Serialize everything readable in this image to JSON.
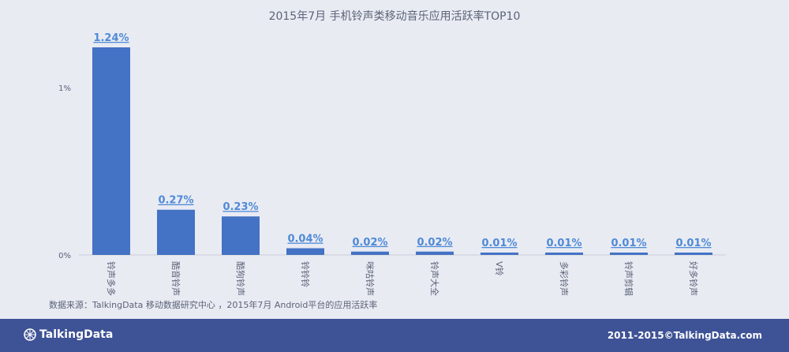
{
  "chart_data": {
    "type": "bar",
    "title": "2015年7月 手机铃声类移动音乐应用活跃率TOP10",
    "categories": [
      "铃声多多",
      "酷音铃声",
      "酷狗铃声",
      "铃铃铃",
      "咪咕铃声",
      "铃声大全",
      "V铃",
      "多彩铃声",
      "铃声剪辑",
      "好多铃声"
    ],
    "values": [
      1.24,
      0.27,
      0.23,
      0.04,
      0.02,
      0.02,
      0.01,
      0.01,
      0.01,
      0.01
    ],
    "value_labels": [
      "1.24%",
      "0.27%",
      "0.23%",
      "0.04%",
      "0.02%",
      "0.02%",
      "0.01%",
      "0.01%",
      "0.01%",
      "0.01%"
    ],
    "y_ticks": [
      0,
      1
    ],
    "y_tick_labels": [
      "0%",
      "1%"
    ],
    "ylim": [
      0,
      1.24
    ],
    "xlabel": "",
    "ylabel": "",
    "grid": false,
    "colors": {
      "bar": "#4472c4",
      "label": "#4f8ad6",
      "axis_text": "#5b6378",
      "axis_line": "#c9ccd6"
    }
  },
  "source_note": "数据来源：TalkingData 移动数据研究中心 ，2015年7月 Android平台的应用活跃率",
  "footer": {
    "brand": "TalkingData",
    "copyright": "2011-2015©TalkingData.com",
    "background": "#3e5296"
  }
}
